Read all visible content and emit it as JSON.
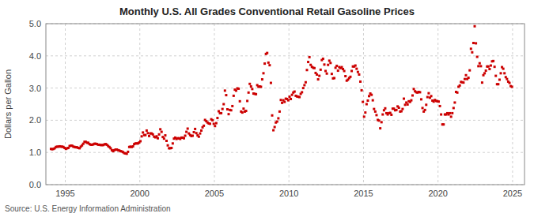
{
  "chart_data": {
    "type": "scatter",
    "title": "Monthly U.S. All Grades Conventional Retail Gasoline Prices",
    "ylabel": "Dollars per Gallon",
    "annotations": [
      "Source: U.S. Energy Information Administration"
    ],
    "color": "#cc0000",
    "marker": "square",
    "grid": true,
    "xlim": [
      1993.7,
      2025.8
    ],
    "ylim": [
      0.0,
      5.0
    ],
    "xticks": [
      1995,
      2000,
      2005,
      2010,
      2015,
      2020,
      2025
    ],
    "yticks": [
      {
        "value": 0.0,
        "label": "0.0"
      },
      {
        "value": 1.0,
        "label": "1.0"
      },
      {
        "value": 2.0,
        "label": "2.0"
      },
      {
        "value": 3.0,
        "label": "3.0"
      },
      {
        "value": 4.0,
        "label": "4.0"
      },
      {
        "value": 5.0,
        "label": "5.0"
      }
    ],
    "x": [
      1994.0417,
      1994.125,
      1994.2083,
      1994.2917,
      1994.375,
      1994.4583,
      1994.5417,
      1994.625,
      1994.7083,
      1994.7917,
      1994.875,
      1994.9583,
      1995.0417,
      1995.125,
      1995.2083,
      1995.2917,
      1995.375,
      1995.4583,
      1995.5417,
      1995.625,
      1995.7083,
      1995.7917,
      1995.875,
      1995.9583,
      1996.0417,
      1996.125,
      1996.2083,
      1996.2917,
      1996.375,
      1996.4583,
      1996.5417,
      1996.625,
      1996.7083,
      1996.7917,
      1996.875,
      1996.9583,
      1997.0417,
      1997.125,
      1997.2083,
      1997.2917,
      1997.375,
      1997.4583,
      1997.5417,
      1997.625,
      1997.7083,
      1997.7917,
      1997.875,
      1997.9583,
      1998.0417,
      1998.125,
      1998.2083,
      1998.2917,
      1998.375,
      1998.4583,
      1998.5417,
      1998.625,
      1998.7083,
      1998.7917,
      1998.875,
      1998.9583,
      1999.0417,
      1999.125,
      1999.2083,
      1999.2917,
      1999.375,
      1999.4583,
      1999.5417,
      1999.625,
      1999.7083,
      1999.7917,
      1999.875,
      1999.9583,
      2000.0417,
      2000.125,
      2000.2083,
      2000.2917,
      2000.375,
      2000.4583,
      2000.5417,
      2000.625,
      2000.7083,
      2000.7917,
      2000.875,
      2000.9583,
      2001.0417,
      2001.125,
      2001.2083,
      2001.2917,
      2001.375,
      2001.4583,
      2001.5417,
      2001.625,
      2001.7083,
      2001.7917,
      2001.875,
      2001.9583,
      2002.0417,
      2002.125,
      2002.2083,
      2002.2917,
      2002.375,
      2002.4583,
      2002.5417,
      2002.625,
      2002.7083,
      2002.7917,
      2002.875,
      2002.9583,
      2003.0417,
      2003.125,
      2003.2083,
      2003.2917,
      2003.375,
      2003.4583,
      2003.5417,
      2003.625,
      2003.7083,
      2003.7917,
      2003.875,
      2003.9583,
      2004.0417,
      2004.125,
      2004.2083,
      2004.2917,
      2004.375,
      2004.4583,
      2004.5417,
      2004.625,
      2004.7083,
      2004.7917,
      2004.875,
      2004.9583,
      2005.0417,
      2005.125,
      2005.2083,
      2005.2917,
      2005.375,
      2005.4583,
      2005.5417,
      2005.625,
      2005.7083,
      2005.7917,
      2005.875,
      2005.9583,
      2006.0417,
      2006.125,
      2006.2083,
      2006.2917,
      2006.375,
      2006.4583,
      2006.5417,
      2006.625,
      2006.7083,
      2006.7917,
      2006.875,
      2006.9583,
      2007.0417,
      2007.125,
      2007.2083,
      2007.2917,
      2007.375,
      2007.4583,
      2007.5417,
      2007.625,
      2007.7083,
      2007.7917,
      2007.875,
      2007.9583,
      2008.0417,
      2008.125,
      2008.2083,
      2008.2917,
      2008.375,
      2008.4583,
      2008.5417,
      2008.625,
      2008.7083,
      2008.7917,
      2008.875,
      2008.9583,
      2009.0417,
      2009.125,
      2009.2083,
      2009.2917,
      2009.375,
      2009.4583,
      2009.5417,
      2009.625,
      2009.7083,
      2009.7917,
      2009.875,
      2009.9583,
      2010.0417,
      2010.125,
      2010.2083,
      2010.2917,
      2010.375,
      2010.4583,
      2010.5417,
      2010.625,
      2010.7083,
      2010.7917,
      2010.875,
      2010.9583,
      2011.0417,
      2011.125,
      2011.2083,
      2011.2917,
      2011.375,
      2011.4583,
      2011.5417,
      2011.625,
      2011.7083,
      2011.7917,
      2011.875,
      2011.9583,
      2012.0417,
      2012.125,
      2012.2083,
      2012.2917,
      2012.375,
      2012.4583,
      2012.5417,
      2012.625,
      2012.7083,
      2012.7917,
      2012.875,
      2012.9583,
      2013.0417,
      2013.125,
      2013.2083,
      2013.2917,
      2013.375,
      2013.4583,
      2013.5417,
      2013.625,
      2013.7083,
      2013.7917,
      2013.875,
      2013.9583,
      2014.0417,
      2014.125,
      2014.2083,
      2014.2917,
      2014.375,
      2014.4583,
      2014.5417,
      2014.625,
      2014.7083,
      2014.7917,
      2014.875,
      2014.9583,
      2015.0417,
      2015.125,
      2015.2083,
      2015.2917,
      2015.375,
      2015.4583,
      2015.5417,
      2015.625,
      2015.7083,
      2015.7917,
      2015.875,
      2015.9583,
      2016.0417,
      2016.125,
      2016.2083,
      2016.2917,
      2016.375,
      2016.4583,
      2016.5417,
      2016.625,
      2016.7083,
      2016.7917,
      2016.875,
      2016.9583,
      2017.0417,
      2017.125,
      2017.2083,
      2017.2917,
      2017.375,
      2017.4583,
      2017.5417,
      2017.625,
      2017.7083,
      2017.7917,
      2017.875,
      2017.9583,
      2018.0417,
      2018.125,
      2018.2083,
      2018.2917,
      2018.375,
      2018.4583,
      2018.5417,
      2018.625,
      2018.7083,
      2018.7917,
      2018.875,
      2018.9583,
      2019.0417,
      2019.125,
      2019.2083,
      2019.2917,
      2019.375,
      2019.4583,
      2019.5417,
      2019.625,
      2019.7083,
      2019.7917,
      2019.875,
      2019.9583,
      2020.0417,
      2020.125,
      2020.2083,
      2020.2917,
      2020.375,
      2020.4583,
      2020.5417,
      2020.625,
      2020.7083,
      2020.7917,
      2020.875,
      2020.9583,
      2021.0417,
      2021.125,
      2021.2083,
      2021.2917,
      2021.375,
      2021.4583,
      2021.5417,
      2021.625,
      2021.7083,
      2021.7917,
      2021.875,
      2021.9583,
      2022.0417,
      2022.125,
      2022.2083,
      2022.2917,
      2022.375,
      2022.4583,
      2022.5417,
      2022.625,
      2022.7083,
      2022.7917,
      2022.875,
      2022.9583,
      2023.0417,
      2023.125,
      2023.2083,
      2023.2917,
      2023.375,
      2023.4583,
      2023.5417,
      2023.625,
      2023.7083,
      2023.7917,
      2023.875,
      2023.9583,
      2024.0417,
      2024.125,
      2024.2083,
      2024.2917,
      2024.375,
      2024.4583,
      2024.5417,
      2024.625,
      2024.7083,
      2024.7917,
      2024.875,
      2024.9583
    ],
    "values": [
      1.11,
      1.1,
      1.11,
      1.13,
      1.17,
      1.18,
      1.18,
      1.19,
      1.18,
      1.18,
      1.17,
      1.14,
      1.11,
      1.13,
      1.14,
      1.2,
      1.21,
      1.21,
      1.18,
      1.17,
      1.16,
      1.16,
      1.14,
      1.13,
      1.18,
      1.22,
      1.27,
      1.33,
      1.33,
      1.3,
      1.3,
      1.26,
      1.24,
      1.24,
      1.25,
      1.27,
      1.27,
      1.26,
      1.24,
      1.24,
      1.23,
      1.23,
      1.23,
      1.25,
      1.26,
      1.24,
      1.2,
      1.17,
      1.13,
      1.07,
      1.04,
      1.07,
      1.09,
      1.09,
      1.07,
      1.06,
      1.04,
      1.03,
      1.01,
      0.98,
      0.97,
      0.96,
      1.02,
      1.17,
      1.18,
      1.17,
      1.19,
      1.26,
      1.28,
      1.28,
      1.28,
      1.31,
      1.35,
      1.5,
      1.62,
      1.54,
      1.54,
      1.68,
      1.6,
      1.51,
      1.59,
      1.59,
      1.56,
      1.49,
      1.47,
      1.5,
      1.44,
      1.56,
      1.72,
      1.64,
      1.48,
      1.43,
      1.53,
      1.36,
      1.22,
      1.13,
      1.13,
      1.14,
      1.28,
      1.43,
      1.46,
      1.42,
      1.44,
      1.44,
      1.42,
      1.46,
      1.46,
      1.44,
      1.52,
      1.64,
      1.74,
      1.59,
      1.54,
      1.51,
      1.52,
      1.63,
      1.73,
      1.6,
      1.53,
      1.49,
      1.59,
      1.68,
      1.78,
      1.83,
      2.01,
      1.97,
      1.93,
      1.9,
      1.89,
      2.03,
      2.0,
      1.89,
      1.82,
      1.91,
      2.07,
      2.28,
      2.22,
      2.22,
      2.35,
      2.5,
      2.92,
      2.78,
      2.34,
      2.19,
      2.32,
      2.31,
      2.44,
      2.76,
      2.95,
      2.92,
      2.99,
      2.98,
      2.59,
      2.27,
      2.24,
      2.36,
      2.27,
      2.29,
      2.6,
      2.86,
      3.13,
      3.05,
      2.97,
      2.83,
      2.82,
      2.81,
      3.09,
      3.04,
      3.05,
      3.04,
      3.27,
      3.46,
      3.76,
      4.06,
      4.09,
      3.79,
      3.71,
      3.16,
      2.15,
      1.69,
      1.79,
      1.93,
      1.96,
      2.06,
      2.27,
      2.63,
      2.54,
      2.62,
      2.57,
      2.67,
      2.66,
      2.62,
      2.73,
      2.66,
      2.79,
      2.86,
      2.89,
      2.76,
      2.74,
      2.73,
      2.72,
      2.82,
      2.87,
      3.0,
      3.09,
      3.18,
      3.56,
      3.81,
      3.96,
      3.72,
      3.66,
      3.63,
      3.62,
      3.47,
      3.42,
      3.27,
      3.38,
      3.57,
      3.87,
      3.91,
      3.73,
      3.53,
      3.45,
      3.72,
      3.85,
      3.78,
      3.44,
      3.3,
      3.31,
      3.63,
      3.69,
      3.54,
      3.65,
      3.62,
      3.65,
      3.59,
      3.53,
      3.37,
      3.23,
      3.26,
      3.31,
      3.35,
      3.53,
      3.67,
      3.67,
      3.7,
      3.6,
      3.5,
      3.42,
      3.2,
      2.93,
      2.57,
      2.11,
      2.24,
      2.5,
      2.61,
      2.75,
      2.83,
      2.79,
      2.62,
      2.35,
      2.27,
      2.16,
      2.01,
      1.99,
      1.75,
      1.94,
      2.18,
      2.31,
      2.37,
      2.22,
      2.18,
      2.22,
      2.23,
      2.17,
      2.36,
      2.36,
      2.31,
      2.32,
      2.43,
      2.39,
      2.27,
      2.28,
      2.35,
      2.67,
      2.48,
      2.55,
      2.49,
      2.59,
      2.57,
      2.62,
      2.77,
      2.97,
      2.9,
      2.87,
      2.86,
      2.88,
      2.87,
      2.65,
      2.38,
      2.27,
      2.32,
      2.48,
      2.72,
      2.84,
      2.7,
      2.75,
      2.61,
      2.58,
      2.63,
      2.6,
      2.59,
      2.58,
      2.44,
      2.18,
      1.87,
      1.87,
      2.18,
      2.18,
      2.22,
      2.18,
      2.22,
      2.11,
      2.22,
      2.38,
      2.55,
      2.88,
      2.86,
      3.04,
      3.08,
      3.19,
      3.18,
      3.17,
      3.28,
      3.4,
      3.28,
      3.32,
      3.55,
      4.22,
      4.11,
      4.4,
      4.92,
      4.39,
      3.97,
      3.68,
      3.77,
      3.68,
      3.17,
      3.4,
      3.46,
      3.54,
      3.67,
      3.67,
      3.59,
      3.7,
      3.83,
      3.84,
      3.66,
      3.38,
      3.12,
      3.12,
      3.26,
      3.46,
      3.65,
      3.6,
      3.46,
      3.34,
      3.28,
      3.2,
      3.16,
      3.06,
      3.04
    ]
  }
}
